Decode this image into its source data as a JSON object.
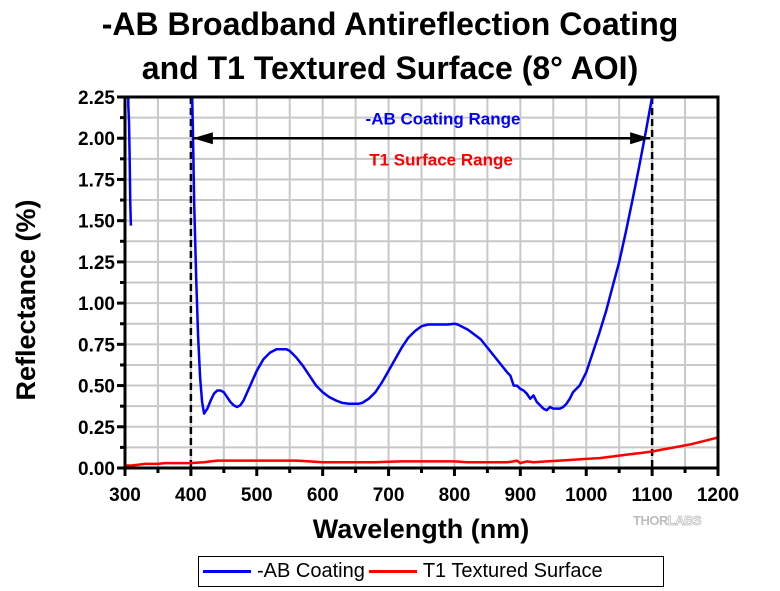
{
  "chart_data": {
    "type": "line",
    "title": "-AB Broadband Antireflection Coating",
    "subtitle": "and T1 Textured Surface (8° AOI)",
    "xlabel": "Wavelength (nm)",
    "ylabel": "Reflectance (%)",
    "xlim": [
      300,
      1200
    ],
    "ylim": [
      0,
      2.25
    ],
    "xticks": [
      "300",
      "400",
      "500",
      "600",
      "700",
      "800",
      "900",
      "1000",
      "1100",
      "1200"
    ],
    "yticks": [
      "0.00",
      "0.25",
      "0.50",
      "0.75",
      "1.00",
      "1.25",
      "1.50",
      "1.75",
      "2.00",
      "2.25"
    ],
    "grid": true,
    "legend_position": "bottom",
    "series": [
      {
        "name": "-AB Coating",
        "color": "#0000ff",
        "segments": [
          {
            "x": [
              305,
              305,
              306,
              307,
              308,
              309
            ],
            "y": [
              2.25,
              2.2,
              2.1,
              1.9,
              1.6,
              1.47
            ]
          },
          {
            "x": [
              402,
              403,
              405,
              408,
              411,
              414,
              417,
              420,
              425,
              430,
              435,
              440,
              445,
              450,
              455,
              460,
              465,
              470,
              475,
              480,
              490,
              500,
              510,
              520,
              530,
              540,
              545,
              550,
              560,
              570,
              580,
              590,
              600,
              610,
              620,
              630,
              640,
              650,
              655,
              660,
              670,
              680,
              690,
              700,
              710,
              720,
              730,
              740,
              750,
              760,
              770,
              780,
              790,
              800,
              805,
              810,
              820,
              830,
              840,
              850,
              860,
              870,
              880,
              885,
              890,
              895,
              900,
              905,
              910,
              915,
              920,
              925,
              930,
              935,
              940,
              945,
              950,
              955,
              960,
              965,
              970,
              975,
              980,
              985,
              990,
              1000,
              1010,
              1020,
              1030,
              1040,
              1050,
              1060,
              1070,
              1080,
              1090,
              1100
            ],
            "y": [
              2.25,
              2.05,
              1.6,
              1.15,
              0.8,
              0.55,
              0.4,
              0.33,
              0.36,
              0.41,
              0.45,
              0.47,
              0.47,
              0.46,
              0.43,
              0.4,
              0.38,
              0.37,
              0.38,
              0.41,
              0.5,
              0.59,
              0.66,
              0.7,
              0.72,
              0.72,
              0.72,
              0.71,
              0.67,
              0.62,
              0.56,
              0.5,
              0.46,
              0.43,
              0.41,
              0.395,
              0.39,
              0.39,
              0.39,
              0.395,
              0.42,
              0.46,
              0.52,
              0.59,
              0.66,
              0.73,
              0.79,
              0.83,
              0.86,
              0.87,
              0.87,
              0.87,
              0.87,
              0.875,
              0.87,
              0.86,
              0.84,
              0.81,
              0.78,
              0.73,
              0.68,
              0.63,
              0.58,
              0.56,
              0.5,
              0.5,
              0.48,
              0.47,
              0.45,
              0.42,
              0.44,
              0.4,
              0.38,
              0.36,
              0.35,
              0.37,
              0.36,
              0.36,
              0.36,
              0.37,
              0.39,
              0.42,
              0.46,
              0.48,
              0.5,
              0.58,
              0.7,
              0.82,
              0.95,
              1.1,
              1.25,
              1.43,
              1.62,
              1.82,
              2.03,
              2.25
            ]
          }
        ]
      },
      {
        "name": "T1 Textured Surface",
        "color": "#ff0000",
        "segments": [
          {
            "x": [
              300,
              310,
              320,
              330,
              340,
              350,
              360,
              370,
              380,
              390,
              400,
              410,
              420,
              430,
              440,
              450,
              460,
              470,
              480,
              500,
              520,
              540,
              560,
              580,
              600,
              620,
              640,
              660,
              680,
              700,
              720,
              740,
              760,
              780,
              800,
              820,
              840,
              860,
              880,
              890,
              895,
              900,
              910,
              920,
              940,
              960,
              980,
              1000,
              1020,
              1040,
              1060,
              1080,
              1100,
              1120,
              1140,
              1160,
              1180,
              1200
            ],
            "y": [
              0.015,
              0.015,
              0.02,
              0.025,
              0.025,
              0.025,
              0.03,
              0.03,
              0.03,
              0.03,
              0.03,
              0.033,
              0.035,
              0.04,
              0.045,
              0.045,
              0.045,
              0.045,
              0.045,
              0.045,
              0.045,
              0.045,
              0.045,
              0.04,
              0.035,
              0.035,
              0.035,
              0.035,
              0.035,
              0.038,
              0.04,
              0.04,
              0.04,
              0.04,
              0.04,
              0.035,
              0.035,
              0.035,
              0.035,
              0.04,
              0.045,
              0.03,
              0.04,
              0.035,
              0.04,
              0.045,
              0.05,
              0.055,
              0.06,
              0.07,
              0.08,
              0.09,
              0.1,
              0.115,
              0.13,
              0.145,
              0.165,
              0.185
            ]
          }
        ]
      }
    ],
    "annotations": [
      {
        "text": "-AB Coating Range",
        "color": "#0000ff",
        "x_range": [
          400,
          1100
        ]
      },
      {
        "text": "T1 Surface Range",
        "color": "#ff0000",
        "x_range": [
          400,
          1100
        ]
      }
    ],
    "range_markers": [
      400,
      1100
    ],
    "range_arrow_y": 2.0
  },
  "watermark": {
    "text_a": "THOR",
    "text_b": "LABS"
  }
}
